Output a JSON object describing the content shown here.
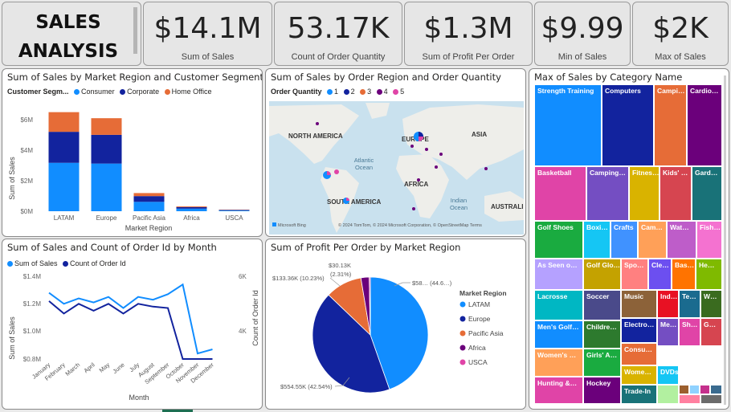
{
  "title": "SALES ANALYSIS",
  "kpis": [
    {
      "value": "$14.1M",
      "label": "Sum of Sales"
    },
    {
      "value": "53.17K",
      "label": "Count of Order Quantity"
    },
    {
      "value": "$1.3M",
      "label": "Sum of Profit Per Order"
    },
    {
      "value": "$9.99",
      "label": "Min of Sales"
    },
    {
      "value": "$2K",
      "label": "Max of Sales"
    }
  ],
  "colors": {
    "consumer": "#118dff",
    "corporate": "#12239e",
    "home_office": "#e66c37",
    "africa": "#6b007b",
    "usca": "#e044a7"
  },
  "bar_chart": {
    "title": "Sum of Sales by Market Region and Customer Segment",
    "legend_title": "Customer Segm...",
    "legend": [
      "Consumer",
      "Corporate",
      "Home Office"
    ],
    "ylabel": "Sum of Sales",
    "xlabel": "Market Region",
    "yticks": [
      "$6M",
      "$4M",
      "$2M",
      "$0M"
    ],
    "chart_data": {
      "type": "bar",
      "stacked": true,
      "categories": [
        "LATAM",
        "Europe",
        "Pacific Asia",
        "Africa",
        "USCA"
      ],
      "series": [
        {
          "name": "Consumer",
          "values": [
            3.2,
            3.15,
            0.62,
            0.17,
            0.05
          ]
        },
        {
          "name": "Corporate",
          "values": [
            2.05,
            1.9,
            0.38,
            0.1,
            0.03
          ]
        },
        {
          "name": "Home Office",
          "values": [
            1.3,
            1.1,
            0.2,
            0.05,
            0.02
          ]
        }
      ],
      "ylim": [
        0,
        7
      ]
    }
  },
  "map": {
    "title": "Sum of Sales by Order Region and Order Quantity",
    "legend_title": "Order Quantity",
    "legend": [
      "1",
      "2",
      "3",
      "4",
      "5"
    ],
    "labels": {
      "na": "NORTH AMERICA",
      "eu": "EUROPE",
      "asia": "ASIA",
      "af": "AFRICA",
      "sa": "SOUTH AMERICA",
      "au": "AUSTRALI",
      "atl": "Atlantic\nOcean",
      "ind": "Indian\nOcean"
    },
    "attribution": "© 2024 TomTom, © 2024 Microsoft Corporation, © OpenStreetMap  Terms",
    "bing": "Microsoft Bing"
  },
  "line_chart": {
    "title": "Sum of Sales and Count of Order Id by Month",
    "legend": [
      "Sum of Sales",
      "Count of Order Id"
    ],
    "ylabel_left": "Sum of Sales",
    "ylabel_right": "Count of Order Id",
    "xlabel": "Month",
    "yticks_left": [
      "$1.4M",
      "$1.2M",
      "$1.0M",
      "$0.8M"
    ],
    "yticks_right": [
      "6K",
      "4K"
    ],
    "chart_data": {
      "type": "line",
      "categories": [
        "January",
        "February",
        "March",
        "April",
        "May",
        "June",
        "July",
        "August",
        "September",
        "October",
        "November",
        "December"
      ],
      "series": [
        {
          "name": "Sum of Sales",
          "values": [
            1.28,
            1.2,
            1.24,
            1.21,
            1.25,
            1.17,
            1.25,
            1.23,
            1.27,
            1.34,
            0.84,
            0.87
          ]
        },
        {
          "name": "Count of Order Id",
          "values": [
            1.22,
            1.13,
            1.2,
            1.15,
            1.2,
            1.13,
            1.2,
            1.18,
            1.17,
            0.8,
            0.8,
            0.8
          ]
        }
      ]
    }
  },
  "pie_chart": {
    "title": "Sum of Profit Per Order by Market Region",
    "legend_title": "Market Region",
    "legend": [
      "LATAM",
      "Europe",
      "Pacific Asia",
      "Africa",
      "USCA"
    ],
    "labels": [
      "$58… (44.6…)",
      "$554.55K (42.54%)",
      "$133.36K (10.23%)",
      "$30.13K",
      "(2.31%)"
    ],
    "chart_data": {
      "type": "pie",
      "labels": [
        "LATAM",
        "Europe",
        "Pacific Asia",
        "Africa",
        "USCA"
      ],
      "values": [
        44.6,
        42.54,
        10.23,
        2.31,
        0.32
      ]
    }
  },
  "treemap": {
    "title": "Max of Sales by Category Name",
    "items": [
      "Strength Training",
      "Computers",
      "Campi…",
      "Cardio…",
      "Basketball",
      "Camping…",
      "Fitnes…",
      "Kids' …",
      "Gard…",
      "Golf Shoes",
      "Boxi…",
      "Crafts",
      "Cam…",
      "Wat…",
      "Fish…",
      "As Seen o…",
      "Golf Glo…",
      "Spo…",
      "Cle…",
      "Bas…",
      "He…",
      "Lacrosse",
      "Soccer",
      "Music",
      "Ind…",
      "Te…",
      "W…",
      "Men's Golf…",
      "Childre…",
      "Electro…",
      "Me…",
      "Sh…",
      "G…",
      "Women's …",
      "Girls' A…",
      "Consu…",
      "Hunting &…",
      "Hockey",
      "Wome…",
      "DVDs",
      "Trade-In"
    ]
  }
}
